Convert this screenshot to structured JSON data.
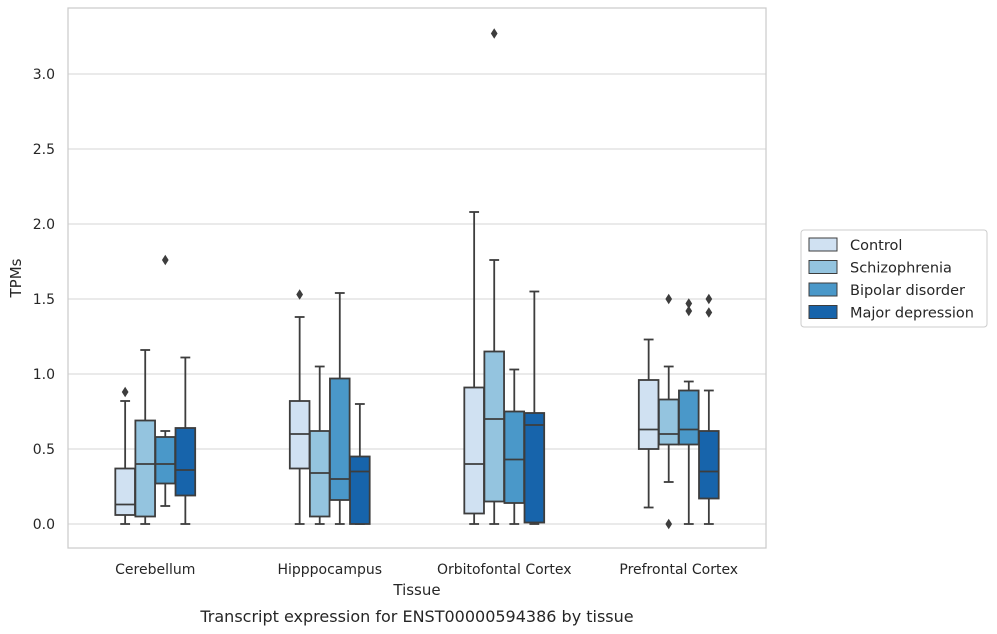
{
  "chart_data": {
    "type": "box",
    "title": "",
    "caption": "Transcript expression for ENST00000594386 by tissue",
    "xlabel": "Tissue",
    "ylabel": "TPMs",
    "ylim": [
      -0.16,
      3.44
    ],
    "yticks": [
      0.0,
      0.5,
      1.0,
      1.5,
      2.0,
      2.5,
      3.0
    ],
    "ytick_labels": [
      "0.0",
      "0.5",
      "1.0",
      "1.5",
      "2.0",
      "2.5",
      "3.0"
    ],
    "grid": "horizontal",
    "legend_position": "right",
    "categories": [
      "Cerebellum",
      "Hipppocampus",
      "Orbitofontal Cortex",
      "Prefrontal Cortex"
    ],
    "series": [
      {
        "name": "Control",
        "color": "#d0e1f2",
        "boxes": [
          {
            "whislo": 0.0,
            "q1": 0.06,
            "med": 0.13,
            "q3": 0.37,
            "whishi": 0.82,
            "fliers": [
              0.88
            ]
          },
          {
            "whislo": 0.0,
            "q1": 0.37,
            "med": 0.6,
            "q3": 0.82,
            "whishi": 1.38,
            "fliers": [
              1.53
            ]
          },
          {
            "whislo": 0.0,
            "q1": 0.07,
            "med": 0.4,
            "q3": 0.91,
            "whishi": 2.08,
            "fliers": []
          },
          {
            "whislo": 0.11,
            "q1": 0.5,
            "med": 0.63,
            "q3": 0.96,
            "whishi": 1.23,
            "fliers": []
          }
        ]
      },
      {
        "name": "Schizophrenia",
        "color": "#94c4df",
        "boxes": [
          {
            "whislo": 0.0,
            "q1": 0.05,
            "med": 0.4,
            "q3": 0.69,
            "whishi": 1.16,
            "fliers": []
          },
          {
            "whislo": 0.0,
            "q1": 0.05,
            "med": 0.34,
            "q3": 0.62,
            "whishi": 1.05,
            "fliers": []
          },
          {
            "whislo": 0.0,
            "q1": 0.15,
            "med": 0.7,
            "q3": 1.15,
            "whishi": 1.76,
            "fliers": [
              3.27
            ]
          },
          {
            "whislo": 0.28,
            "q1": 0.53,
            "med": 0.6,
            "q3": 0.83,
            "whishi": 1.05,
            "fliers": [
              0.0,
              1.5
            ]
          }
        ]
      },
      {
        "name": "Bipolar disorder",
        "color": "#4a98c9",
        "boxes": [
          {
            "whislo": 0.12,
            "q1": 0.27,
            "med": 0.4,
            "q3": 0.58,
            "whishi": 0.62,
            "fliers": [
              1.76
            ]
          },
          {
            "whislo": 0.0,
            "q1": 0.16,
            "med": 0.3,
            "q3": 0.97,
            "whishi": 1.54,
            "fliers": []
          },
          {
            "whislo": 0.0,
            "q1": 0.14,
            "med": 0.43,
            "q3": 0.75,
            "whishi": 1.03,
            "fliers": []
          },
          {
            "whislo": 0.0,
            "q1": 0.53,
            "med": 0.63,
            "q3": 0.89,
            "whishi": 0.95,
            "fliers": [
              1.42,
              1.47
            ]
          }
        ]
      },
      {
        "name": "Major depression",
        "color": "#1764ab",
        "boxes": [
          {
            "whislo": 0.0,
            "q1": 0.19,
            "med": 0.36,
            "q3": 0.64,
            "whishi": 1.11,
            "fliers": []
          },
          {
            "whislo": 0.0,
            "q1": 0.0,
            "med": 0.35,
            "q3": 0.45,
            "whishi": 0.8,
            "fliers": []
          },
          {
            "whislo": 0.0,
            "q1": 0.01,
            "med": 0.66,
            "q3": 0.74,
            "whishi": 1.55,
            "fliers": []
          },
          {
            "whislo": 0.0,
            "q1": 0.17,
            "med": 0.35,
            "q3": 0.62,
            "whishi": 0.89,
            "fliers": [
              1.41,
              1.5
            ]
          }
        ]
      }
    ]
  }
}
